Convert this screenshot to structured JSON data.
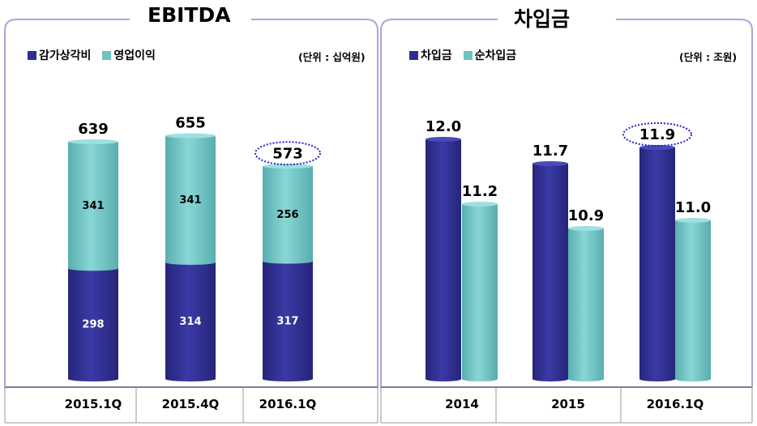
{
  "chart_data": [
    {
      "type": "bar",
      "stacked": true,
      "title": "EBITDA",
      "unit": "(단위 : 십억원)",
      "categories": [
        "2015.1Q",
        "2015.4Q",
        "2016.1Q"
      ],
      "series": [
        {
          "name": "감가상각비",
          "color": "#2e2e8f",
          "values": [
            298,
            314,
            317
          ]
        },
        {
          "name": "영업이익",
          "color": "#6cc3c3",
          "values": [
            341,
            341,
            256
          ]
        }
      ],
      "totals": [
        639,
        655,
        573
      ],
      "highlight_index": 2,
      "ylim": [
        0,
        700
      ]
    },
    {
      "type": "bar",
      "title": "차입금",
      "unit": "(단위 : 조원)",
      "categories": [
        "2014",
        "2015",
        "2016.1Q"
      ],
      "series": [
        {
          "name": "차입금",
          "color": "#2e2e8f",
          "values": [
            12.0,
            11.7,
            11.9
          ]
        },
        {
          "name": "순차입금",
          "color": "#6cc3c3",
          "values": [
            11.2,
            10.9,
            11.0
          ]
        }
      ],
      "highlight_index": 2,
      "ylim": [
        9.04,
        12.5
      ]
    }
  ]
}
